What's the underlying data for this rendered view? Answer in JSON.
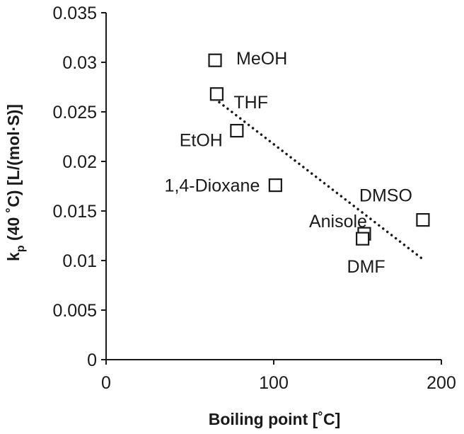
{
  "chart_data": {
    "type": "scatter",
    "xlabel": "Boiling point [˚C]",
    "ylabel_main": "k",
    "ylabel_sub": "p",
    "ylabel_rest": " (40 ˚C) [L/(mol·S)]",
    "xlim": [
      0,
      200
    ],
    "ylim": [
      0,
      0.035
    ],
    "x_ticks": [
      0,
      100,
      200
    ],
    "x_tick_labels": [
      "0",
      "100",
      "200"
    ],
    "y_ticks": [
      0,
      0.005,
      0.01,
      0.015,
      0.02,
      0.025,
      0.03,
      0.035
    ],
    "y_tick_labels": [
      "0",
      "0.005",
      "0.01",
      "0.015",
      "0.02",
      "0.025",
      "0.03",
      "0.035"
    ],
    "grid": false,
    "marker": "open-square",
    "points": [
      {
        "label": "MeOH",
        "x": 65,
        "y": 0.0302
      },
      {
        "label": "THF",
        "x": 66,
        "y": 0.0268
      },
      {
        "label": "EtOH",
        "x": 78,
        "y": 0.0231
      },
      {
        "label": "1,4-Dioxane",
        "x": 101,
        "y": 0.0176
      },
      {
        "label": "Anisole",
        "x": 154,
        "y": 0.0127
      },
      {
        "label": "DMF",
        "x": 153,
        "y": 0.0122
      },
      {
        "label": "DMSO",
        "x": 189,
        "y": 0.0141
      }
    ],
    "trendline": {
      "style": "dotted",
      "x": [
        65,
        190
      ],
      "y": [
        0.0263,
        0.01
      ]
    },
    "colors": {
      "axis": "#1a1a1a",
      "marker": "#1a1a1a",
      "trendline": "#1a1a1a",
      "background": "#ffffff"
    }
  }
}
